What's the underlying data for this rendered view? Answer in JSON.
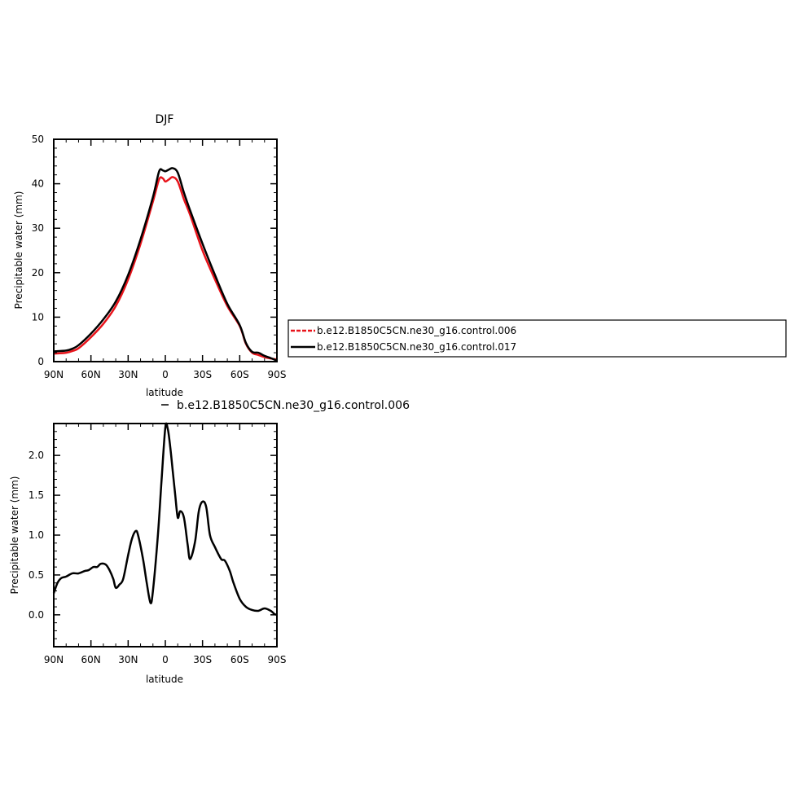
{
  "chart_data": [
    {
      "type": "line",
      "title": "DJF",
      "xlabel": "latitude",
      "ylabel": "Precipitable water (mm)",
      "xlim": [
        -90,
        90
      ],
      "ylim": [
        0,
        50
      ],
      "x_tick_values": [
        -90,
        -60,
        -30,
        0,
        30,
        60,
        90
      ],
      "x_tick_labels": [
        "90N",
        "60N",
        "30N",
        "0",
        "30S",
        "60S",
        "90S"
      ],
      "y_tick_values": [
        0,
        10,
        20,
        30,
        40,
        50
      ],
      "y_tick_labels": [
        "0",
        "10",
        "20",
        "30",
        "40",
        "50"
      ],
      "grid": false,
      "legend_position": "right",
      "x": [
        -90,
        -80,
        -75,
        -70,
        -60,
        -50,
        -40,
        -30,
        -20,
        -10,
        -5,
        -2,
        0,
        3,
        6,
        10,
        15,
        20,
        30,
        40,
        50,
        60,
        65,
        70,
        75,
        80,
        85,
        90
      ],
      "series": [
        {
          "name": "b.e12.B1850C5CN.ne30_g16.control.006",
          "color": "#e8141b",
          "values": [
            1.8,
            2.0,
            2.4,
            3.0,
            5.5,
            8.5,
            12.5,
            18.5,
            26.5,
            36.0,
            41.0,
            41.2,
            40.5,
            41.0,
            41.5,
            40.5,
            36.5,
            33.0,
            25.0,
            18.5,
            12.5,
            8.0,
            4.0,
            2.0,
            1.5,
            1.0,
            0.7,
            0.5
          ]
        },
        {
          "name": "b.e12.B1850C5CN.ne30_g16.control.017",
          "color": "#000000",
          "values": [
            2.3,
            2.5,
            2.9,
            3.7,
            6.3,
            9.5,
            13.5,
            19.5,
            27.5,
            37.0,
            42.8,
            43.0,
            42.8,
            43.2,
            43.5,
            42.5,
            38.0,
            34.0,
            26.5,
            19.5,
            13.0,
            8.2,
            4.2,
            2.2,
            2.0,
            1.3,
            0.8,
            0.2
          ]
        }
      ]
    },
    {
      "type": "line",
      "title": "b.e12.B1850C5CN.ne30_g16.control.006",
      "xlabel": "latitude",
      "ylabel": "Precipitable water (mm)",
      "xlim": [
        -90,
        90
      ],
      "ylim": [
        -0.4,
        2.4
      ],
      "x_tick_values": [
        -90,
        -60,
        -30,
        0,
        30,
        60,
        90
      ],
      "x_tick_labels": [
        "90N",
        "60N",
        "30N",
        "0",
        "30S",
        "60S",
        "90S"
      ],
      "y_tick_values": [
        0.0,
        0.5,
        1.0,
        1.5,
        2.0
      ],
      "y_tick_labels": [
        "0.0",
        "0.5",
        "1.0",
        "1.5",
        "2.0"
      ],
      "grid": false,
      "x": [
        -90,
        -87,
        -84,
        -80,
        -75,
        -70,
        -65,
        -62,
        -58,
        -55,
        -52,
        -48,
        -45,
        -42,
        -40,
        -37,
        -34,
        -30,
        -27,
        -24,
        -22,
        -18,
        -15,
        -12,
        -10,
        -6,
        -3,
        0,
        2,
        4,
        6,
        8,
        10,
        12,
        15,
        18,
        20,
        24,
        27,
        30,
        33,
        36,
        40,
        45,
        48,
        52,
        55,
        60,
        65,
        70,
        75,
        80,
        85,
        88,
        90
      ],
      "series": [
        {
          "name": "b.e12.B1850C5CN.ne30_g16.control.006",
          "color": "#000000",
          "values": [
            0.27,
            0.4,
            0.46,
            0.48,
            0.52,
            0.52,
            0.55,
            0.56,
            0.6,
            0.6,
            0.64,
            0.63,
            0.56,
            0.45,
            0.34,
            0.38,
            0.45,
            0.75,
            0.95,
            1.05,
            1.0,
            0.7,
            0.4,
            0.15,
            0.3,
            1.0,
            1.7,
            2.35,
            2.33,
            2.1,
            1.8,
            1.5,
            1.22,
            1.3,
            1.22,
            0.88,
            0.7,
            0.92,
            1.3,
            1.42,
            1.35,
            1.0,
            0.85,
            0.7,
            0.68,
            0.55,
            0.4,
            0.2,
            0.1,
            0.06,
            0.05,
            0.08,
            0.05,
            0.01,
            0.0
          ]
        }
      ]
    }
  ]
}
